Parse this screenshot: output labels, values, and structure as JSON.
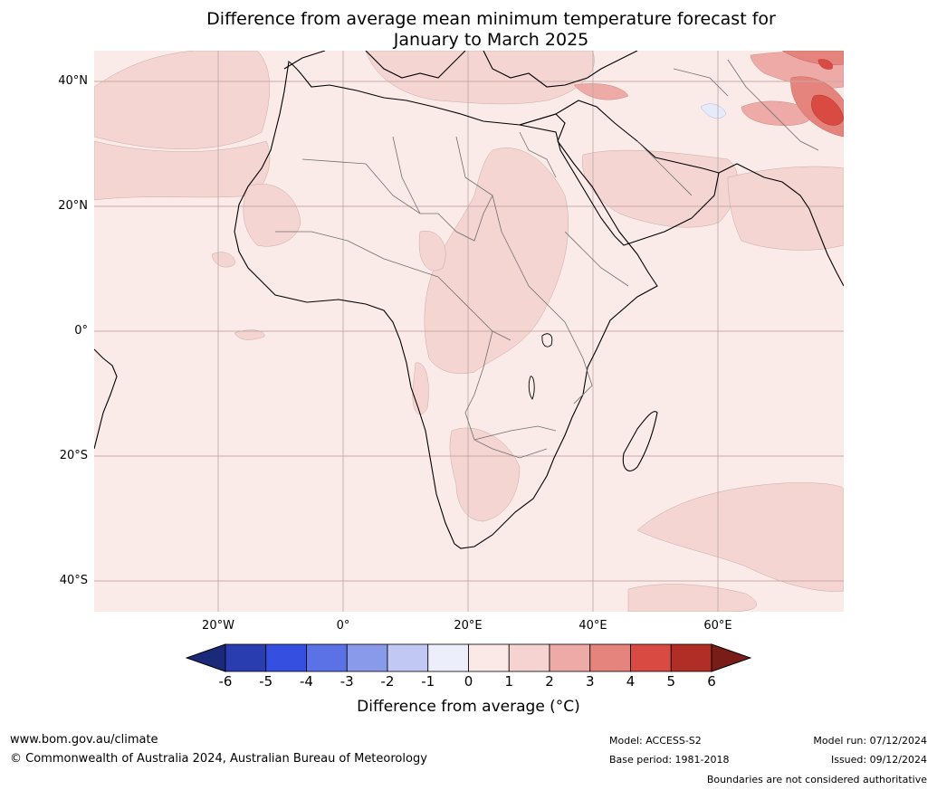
{
  "title": {
    "line1": "Difference from average mean minimum temperature forecast for",
    "line2": "January to March 2025"
  },
  "map": {
    "region": "Africa and Middle East",
    "latitude_labels": [
      "40°N",
      "20°N",
      "0°",
      "20°S",
      "40°S"
    ],
    "longitude_labels": [
      "20°W",
      "0°",
      "20°E",
      "40°E",
      "60°E"
    ],
    "background_anomaly_bin": "0 to 1",
    "notable_regions": [
      {
        "name": "Northwest Atlantic / Sahara coast",
        "bin": "1 to 2"
      },
      {
        "name": "Central Africa / Sahel",
        "bin": "1 to 2"
      },
      {
        "name": "Arabian Peninsula",
        "bin": "1 to 2"
      },
      {
        "name": "Southern Africa",
        "bin": "1 to 2"
      },
      {
        "name": "Southern Indian Ocean",
        "bin": "1 to 2"
      },
      {
        "name": "Iran / Afghanistan / Pakistan",
        "bin": "2 to 5"
      },
      {
        "name": "Eastern Mediterranean / Turkey",
        "bin": "1 to 3"
      },
      {
        "name": "Small area near Iran",
        "bin": "-1 to 0"
      }
    ]
  },
  "colorbar": {
    "labels": [
      "-6",
      "-5",
      "-4",
      "-3",
      "-2",
      "-1",
      "0",
      "1",
      "2",
      "3",
      "4",
      "5",
      "6"
    ],
    "colors": [
      "#1a2a78",
      "#2a3db0",
      "#3550e0",
      "#5b72e6",
      "#8a9aeb",
      "#c2c8f4",
      "#eceefb",
      "#fbe9e7",
      "#f5d3d0",
      "#edaaa6",
      "#e5837d",
      "#d94b42",
      "#b02e25",
      "#7a1d17"
    ],
    "title": "Difference from average (°C)"
  },
  "footer": {
    "website": "www.bom.gov.au/climate",
    "copyright": "© Commonwealth of Australia 2024, Australian Bureau of Meteorology",
    "model": "Model: ACCESS-S2",
    "base_period": "Base period: 1981-2018",
    "model_run": "Model run: 07/12/2024",
    "issued": "Issued: 09/12/2024",
    "disclaimer": "Boundaries are not considered authoritative"
  }
}
